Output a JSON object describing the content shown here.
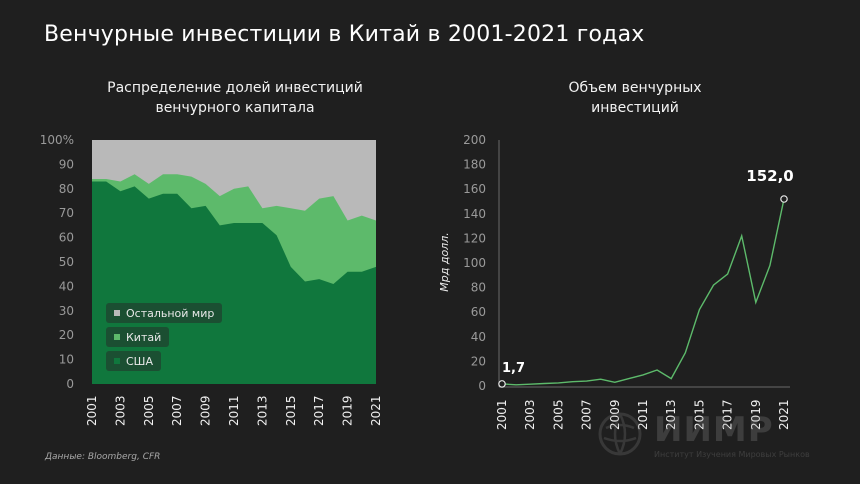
{
  "title": "Венчурные инвестиции в Китай в 2001-2021 годах",
  "source": "Данные: Bloomberg, CFR",
  "logo": {
    "name": "ИИМР",
    "subtitle": "Институт Изучения Мировых Рынков"
  },
  "colors": {
    "usa": "#10773d",
    "china": "#5dba6b",
    "rest": "#b9b9b9",
    "line": "#5dba6b",
    "background": "#1f1f1f"
  },
  "legend": {
    "rest": "Остальной мир",
    "china": "Китай",
    "usa": "США"
  },
  "chart_data": [
    {
      "type": "area",
      "title": "Распределение долей инвестиций венчурного капитала",
      "stacked": true,
      "x": [
        2001,
        2002,
        2003,
        2004,
        2005,
        2006,
        2007,
        2008,
        2009,
        2010,
        2011,
        2012,
        2013,
        2014,
        2015,
        2016,
        2017,
        2018,
        2019,
        2020,
        2021
      ],
      "x_tick_labels": [
        "2001",
        "2003",
        "2005",
        "2007",
        "2009",
        "2011",
        "2013",
        "2015",
        "2017",
        "2019",
        "2021"
      ],
      "y_tick_labels": [
        "0",
        "10",
        "20",
        "30",
        "40",
        "50",
        "60",
        "70",
        "80",
        "90",
        "100%"
      ],
      "ylim": [
        0,
        100
      ],
      "series": [
        {
          "name": "США",
          "values": [
            83,
            83,
            79,
            81,
            76,
            78,
            78,
            72,
            73,
            65,
            66,
            66,
            66,
            61,
            48,
            42,
            43,
            41,
            46,
            46,
            48
          ]
        },
        {
          "name": "Китай",
          "values": [
            1,
            1,
            4,
            5,
            6,
            8,
            8,
            13,
            9,
            12,
            14,
            15,
            6,
            12,
            24,
            29,
            33,
            36,
            21,
            23,
            19
          ]
        },
        {
          "name": "Остальной мир",
          "values": [
            16,
            16,
            17,
            14,
            18,
            14,
            14,
            15,
            18,
            23,
            20,
            19,
            28,
            27,
            28,
            29,
            24,
            23,
            33,
            31,
            33
          ]
        }
      ]
    },
    {
      "type": "line",
      "title": "Объем венчурных инвестиций",
      "ylabel": "Мрд долл.",
      "x": [
        2001,
        2002,
        2003,
        2004,
        2005,
        2006,
        2007,
        2008,
        2009,
        2010,
        2011,
        2012,
        2013,
        2014,
        2015,
        2016,
        2017,
        2018,
        2019,
        2020,
        2021
      ],
      "x_tick_labels": [
        "2001",
        "2003",
        "2005",
        "2007",
        "2009",
        "2011",
        "2013",
        "2015",
        "2017",
        "2019",
        "2021"
      ],
      "y_tick_labels": [
        "0",
        "20",
        "40",
        "60",
        "80",
        "100",
        "120",
        "140",
        "160",
        "180",
        "200"
      ],
      "ylim": [
        0,
        200
      ],
      "values": [
        1.7,
        1,
        1.5,
        2,
        2.5,
        3.5,
        4,
        5.5,
        3,
        6,
        9,
        13,
        6,
        27,
        62,
        82,
        91,
        122,
        68,
        98,
        152
      ],
      "annotations": [
        {
          "x": 2001,
          "label": "1,7"
        },
        {
          "x": 2021,
          "label": "152,0"
        }
      ]
    }
  ]
}
